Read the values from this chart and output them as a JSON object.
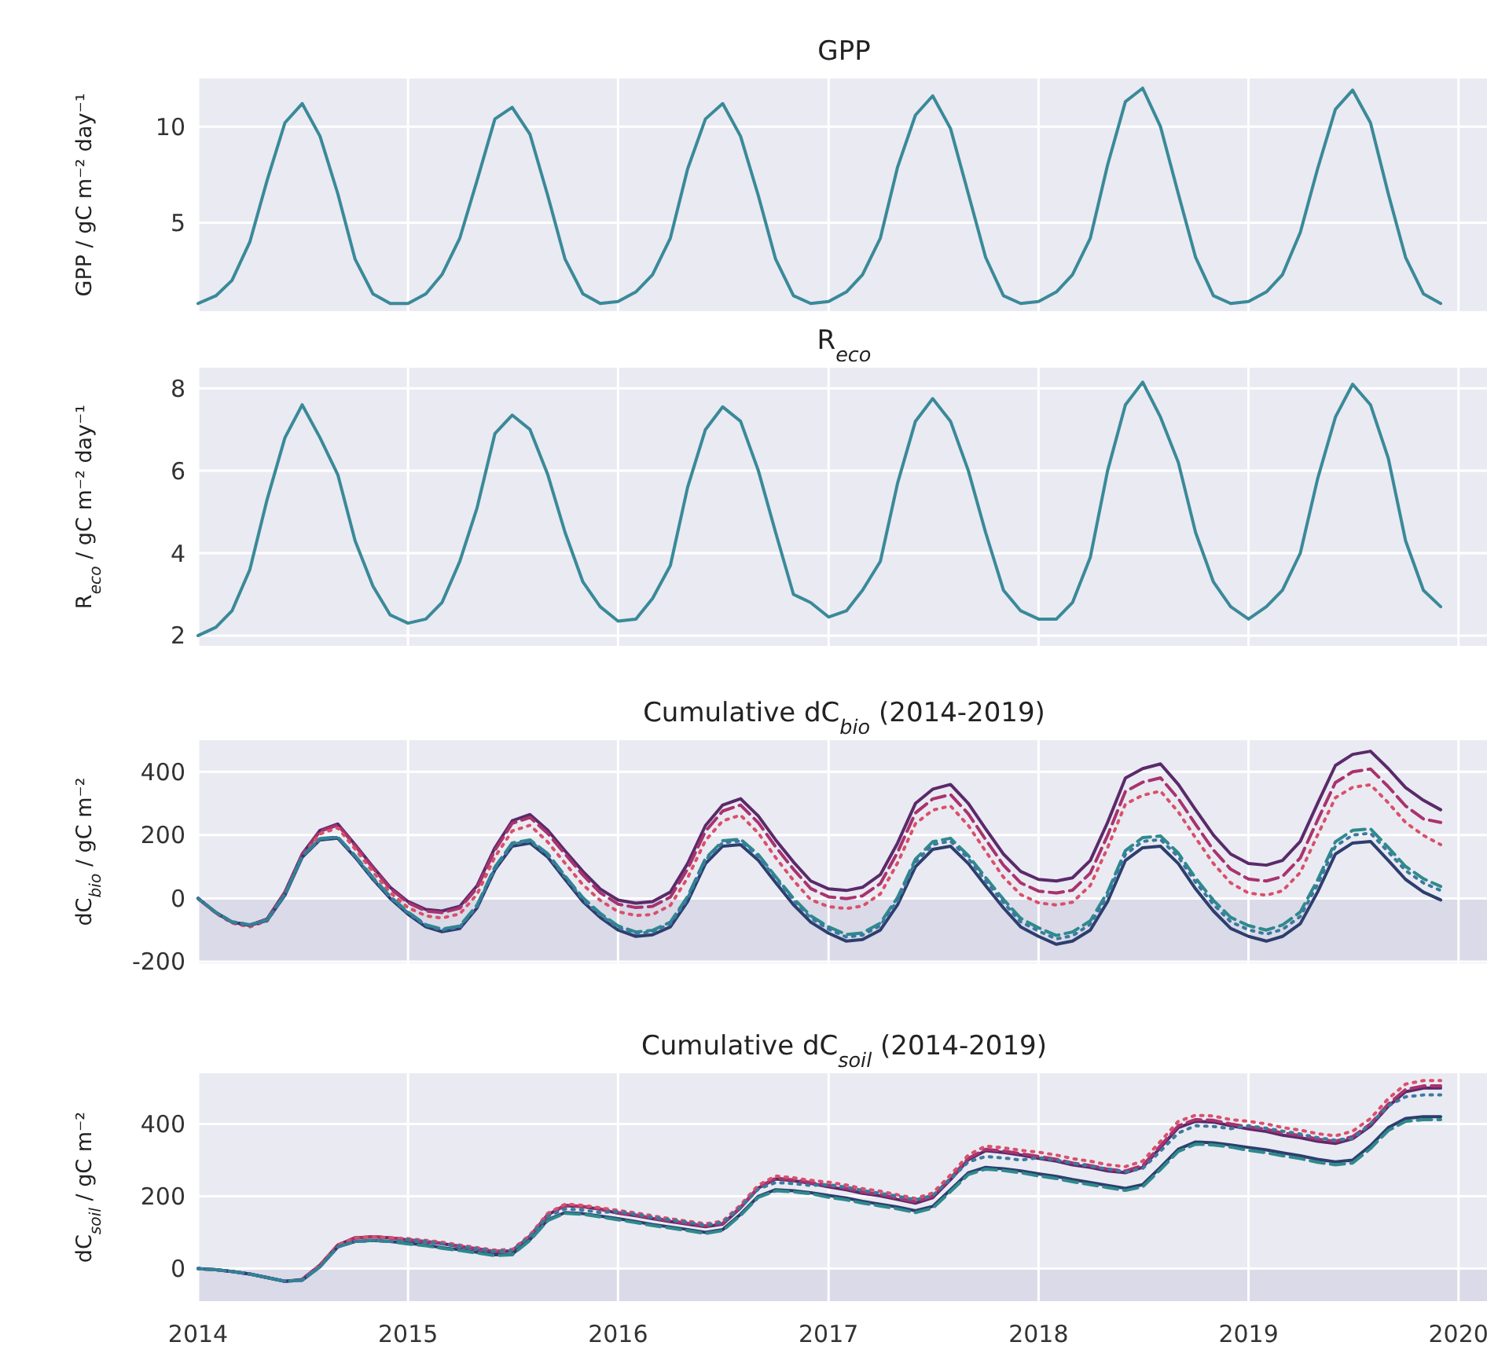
{
  "chart_data": [
    {
      "type": "line",
      "title": "GPP",
      "ylabel": "GPP / gC m⁻² day⁻¹",
      "grid": true,
      "tick_labels": "y",
      "xlim": [
        "2014-01-01",
        "2020-02-25"
      ],
      "xticks": [
        "2014",
        "2015",
        "2016",
        "2017",
        "2018",
        "2019",
        "2020"
      ],
      "ylim": [
        0.4,
        12.5
      ],
      "yticks": [
        5,
        10
      ],
      "x": [
        "2014-01",
        "2014-02",
        "2014-03",
        "2014-04",
        "2014-05",
        "2014-06",
        "2014-07",
        "2014-08",
        "2014-09",
        "2014-10",
        "2014-11",
        "2014-12",
        "2015-01",
        "2015-02",
        "2015-03",
        "2015-04",
        "2015-05",
        "2015-06",
        "2015-07",
        "2015-08",
        "2015-09",
        "2015-10",
        "2015-11",
        "2015-12",
        "2016-01",
        "2016-02",
        "2016-03",
        "2016-04",
        "2016-05",
        "2016-06",
        "2016-07",
        "2016-08",
        "2016-09",
        "2016-10",
        "2016-11",
        "2016-12",
        "2017-01",
        "2017-02",
        "2017-03",
        "2017-04",
        "2017-05",
        "2017-06",
        "2017-07",
        "2017-08",
        "2017-09",
        "2017-10",
        "2017-11",
        "2017-12",
        "2018-01",
        "2018-02",
        "2018-03",
        "2018-04",
        "2018-05",
        "2018-06",
        "2018-07",
        "2018-08",
        "2018-09",
        "2018-10",
        "2018-11",
        "2018-12",
        "2019-01",
        "2019-02",
        "2019-03",
        "2019-04",
        "2019-05",
        "2019-06",
        "2019-07",
        "2019-08",
        "2019-09",
        "2019-10",
        "2019-11",
        "2019-12"
      ],
      "series": [
        {
          "color": "#3a8a99",
          "line_style": "solid",
          "values": [
            0.8,
            1.2,
            2.0,
            4.0,
            7.2,
            10.2,
            11.2,
            9.5,
            6.5,
            3.1,
            1.3,
            0.8,
            0.8,
            1.3,
            2.3,
            4.2,
            7.2,
            10.4,
            11.0,
            9.6,
            6.4,
            3.1,
            1.3,
            0.8,
            0.9,
            1.4,
            2.3,
            4.2,
            7.8,
            10.4,
            11.2,
            9.5,
            6.4,
            3.1,
            1.2,
            0.8,
            0.9,
            1.4,
            2.3,
            4.2,
            7.9,
            10.6,
            11.6,
            9.9,
            6.5,
            3.2,
            1.2,
            0.8,
            0.9,
            1.4,
            2.3,
            4.2,
            8.0,
            11.3,
            12.0,
            10.0,
            6.5,
            3.2,
            1.2,
            0.8,
            0.9,
            1.4,
            2.3,
            4.5,
            7.8,
            10.9,
            11.9,
            10.2,
            6.5,
            3.2,
            1.3,
            0.8
          ]
        }
      ]
    },
    {
      "type": "line",
      "title": "R$_{eco}$",
      "ylabel": "R$_{eco}$ / gC m⁻² day⁻¹",
      "grid": true,
      "tick_labels": "y",
      "xlim": [
        "2014-01-01",
        "2020-02-25"
      ],
      "xticks": [
        "2014",
        "2015",
        "2016",
        "2017",
        "2018",
        "2019",
        "2020"
      ],
      "ylim": [
        1.75,
        8.5
      ],
      "yticks": [
        2,
        4,
        6,
        8
      ],
      "x": [
        "2014-01",
        "2014-02",
        "2014-03",
        "2014-04",
        "2014-05",
        "2014-06",
        "2014-07",
        "2014-08",
        "2014-09",
        "2014-10",
        "2014-11",
        "2014-12",
        "2015-01",
        "2015-02",
        "2015-03",
        "2015-04",
        "2015-05",
        "2015-06",
        "2015-07",
        "2015-08",
        "2015-09",
        "2015-10",
        "2015-11",
        "2015-12",
        "2016-01",
        "2016-02",
        "2016-03",
        "2016-04",
        "2016-05",
        "2016-06",
        "2016-07",
        "2016-08",
        "2016-09",
        "2016-10",
        "2016-11",
        "2016-12",
        "2017-01",
        "2017-02",
        "2017-03",
        "2017-04",
        "2017-05",
        "2017-06",
        "2017-07",
        "2017-08",
        "2017-09",
        "2017-10",
        "2017-11",
        "2017-12",
        "2018-01",
        "2018-02",
        "2018-03",
        "2018-04",
        "2018-05",
        "2018-06",
        "2018-07",
        "2018-08",
        "2018-09",
        "2018-10",
        "2018-11",
        "2018-12",
        "2019-01",
        "2019-02",
        "2019-03",
        "2019-04",
        "2019-05",
        "2019-06",
        "2019-07",
        "2019-08",
        "2019-09",
        "2019-10",
        "2019-11",
        "2019-12"
      ],
      "series": [
        {
          "color": "#3a8a99",
          "line_style": "solid",
          "values": [
            2.0,
            2.2,
            2.6,
            3.6,
            5.3,
            6.8,
            7.6,
            6.8,
            5.9,
            4.3,
            3.2,
            2.5,
            2.3,
            2.4,
            2.8,
            3.8,
            5.1,
            6.9,
            7.35,
            7.0,
            5.9,
            4.5,
            3.3,
            2.7,
            2.35,
            2.4,
            2.9,
            3.7,
            5.6,
            7.0,
            7.55,
            7.2,
            6.0,
            4.5,
            3.0,
            2.8,
            2.45,
            2.6,
            3.1,
            3.8,
            5.7,
            7.2,
            7.75,
            7.2,
            6.0,
            4.5,
            3.1,
            2.6,
            2.4,
            2.4,
            2.8,
            3.9,
            6.0,
            7.6,
            8.15,
            7.3,
            6.2,
            4.5,
            3.3,
            2.7,
            2.4,
            2.7,
            3.1,
            4.0,
            5.8,
            7.3,
            8.1,
            7.6,
            6.3,
            4.3,
            3.1,
            2.7
          ]
        }
      ]
    },
    {
      "type": "line",
      "title": "Cumulative dC$_{bio}$ (2014-2019)",
      "ylabel": "dC$_{bio}$ / gC m⁻²",
      "grid": true,
      "tick_labels": "y",
      "xlim": [
        "2014-01-01",
        "2020-02-25"
      ],
      "xticks": [
        "2014",
        "2015",
        "2016",
        "2017",
        "2018",
        "2019",
        "2020"
      ],
      "ylim": [
        -205,
        500
      ],
      "yticks": [
        -200,
        0,
        200,
        400
      ],
      "bands": [
        {
          "axis": "y",
          "from": -205,
          "to": 0,
          "color": "#dadae8"
        }
      ],
      "x": [
        "2014-01",
        "2014-02",
        "2014-03",
        "2014-04",
        "2014-05",
        "2014-06",
        "2014-07",
        "2014-08",
        "2014-09",
        "2014-10",
        "2014-11",
        "2014-12",
        "2015-01",
        "2015-02",
        "2015-03",
        "2015-04",
        "2015-05",
        "2015-06",
        "2015-07",
        "2015-08",
        "2015-09",
        "2015-10",
        "2015-11",
        "2015-12",
        "2016-01",
        "2016-02",
        "2016-03",
        "2016-04",
        "2016-05",
        "2016-06",
        "2016-07",
        "2016-08",
        "2016-09",
        "2016-10",
        "2016-11",
        "2016-12",
        "2017-01",
        "2017-02",
        "2017-03",
        "2017-04",
        "2017-05",
        "2017-06",
        "2017-07",
        "2017-08",
        "2017-09",
        "2017-10",
        "2017-11",
        "2017-12",
        "2018-01",
        "2018-02",
        "2018-03",
        "2018-04",
        "2018-05",
        "2018-06",
        "2018-07",
        "2018-08",
        "2018-09",
        "2018-10",
        "2018-11",
        "2018-12",
        "2019-01",
        "2019-02",
        "2019-03",
        "2019-04",
        "2019-05",
        "2019-06",
        "2019-07",
        "2019-08",
        "2019-09",
        "2019-10",
        "2019-11",
        "2019-12"
      ],
      "series": [
        {
          "color": "#5a2a6a",
          "line_style": "solid",
          "values": [
            0,
            -45,
            -75,
            -85,
            -65,
            20,
            140,
            215,
            235,
            170,
            100,
            35,
            -10,
            -35,
            -40,
            -25,
            40,
            160,
            245,
            265,
            215,
            150,
            85,
            30,
            -5,
            -15,
            -10,
            20,
            110,
            230,
            295,
            315,
            260,
            185,
            115,
            55,
            30,
            25,
            35,
            75,
            175,
            300,
            345,
            360,
            300,
            220,
            140,
            85,
            60,
            55,
            65,
            120,
            240,
            380,
            410,
            425,
            360,
            280,
            200,
            140,
            110,
            105,
            120,
            180,
            300,
            420,
            455,
            465,
            410,
            350,
            310,
            280
          ]
        },
        {
          "color": "#a8336e",
          "line_style": "dashed",
          "values": [
            0,
            -45,
            -75,
            -85,
            -66,
            19,
            138,
            212,
            232,
            166,
            96,
            31,
            -14,
            -40,
            -45,
            -31,
            33,
            152,
            237,
            256,
            205,
            140,
            74,
            18,
            -18,
            -29,
            -25,
            4,
            93,
            212,
            276,
            295,
            239,
            163,
            92,
            31,
            5,
            -1,
            8,
            47,
            146,
            270,
            314,
            328,
            267,
            186,
            105,
            49,
            23,
            17,
            26,
            80,
            199,
            338,
            367,
            381,
            315,
            234,
            153,
            92,
            61,
            55,
            69,
            128,
            247,
            366,
            400,
            409,
            353,
            292,
            251,
            240
          ]
        },
        {
          "color": "#d9506a",
          "line_style": "dotted",
          "values": [
            0,
            -47,
            -78,
            -90,
            -71,
            12,
            131,
            204,
            223,
            156,
            84,
            18,
            -29,
            -55,
            -62,
            -49,
            13,
            131,
            213,
            231,
            178,
            111,
            43,
            -6,
            -42,
            -54,
            -51,
            -22,
            65,
            183,
            245,
            263,
            206,
            129,
            57,
            -4,
            -26,
            -32,
            -24,
            14,
            112,
            236,
            279,
            292,
            230,
            149,
            67,
            12,
            -14,
            -21,
            -12,
            41,
            160,
            298,
            326,
            339,
            273,
            191,
            110,
            49,
            17,
            10,
            24,
            82,
            200,
            318,
            351,
            359,
            302,
            240,
            199,
            170
          ]
        },
        {
          "color": "#2d3e6e",
          "line_style": "solid",
          "values": [
            0,
            -45,
            -75,
            -85,
            -70,
            10,
            130,
            185,
            190,
            130,
            60,
            0,
            -50,
            -90,
            -105,
            -95,
            -30,
            90,
            165,
            175,
            130,
            60,
            -10,
            -60,
            -100,
            -120,
            -115,
            -90,
            -10,
            110,
            165,
            170,
            120,
            50,
            -20,
            -75,
            -110,
            -135,
            -130,
            -100,
            -20,
            100,
            155,
            165,
            110,
            40,
            -30,
            -90,
            -120,
            -145,
            -135,
            -100,
            -10,
            120,
            160,
            165,
            110,
            30,
            -40,
            -95,
            -120,
            -135,
            -120,
            -80,
            20,
            140,
            175,
            180,
            120,
            60,
            20,
            -5
          ]
        },
        {
          "color": "#2e8a8c",
          "line_style": "dashed",
          "values": [
            0,
            -44,
            -74,
            -83,
            -68,
            13,
            133,
            189,
            194,
            135,
            66,
            6,
            -43,
            -83,
            -97,
            -87,
            -21,
            99,
            175,
            185,
            141,
            71,
            2,
            -47,
            -87,
            -106,
            -101,
            -75,
            6,
            126,
            182,
            187,
            138,
            69,
            0,
            -55,
            -90,
            -114,
            -109,
            -78,
            3,
            124,
            179,
            190,
            135,
            66,
            -3,
            -63,
            -93,
            -117,
            -106,
            -71,
            20,
            151,
            192,
            197,
            143,
            64,
            -6,
            -60,
            -86,
            -100,
            -84,
            -43,
            58,
            179,
            215,
            220,
            161,
            101,
            62,
            38
          ]
        },
        {
          "color": "#3a7aa0",
          "line_style": "dotted",
          "values": [
            0,
            -45,
            -74,
            -84,
            -69,
            12,
            132,
            187,
            193,
            133,
            63,
            4,
            -46,
            -85,
            -100,
            -90,
            -25,
            95,
            171,
            181,
            137,
            67,
            -3,
            -52,
            -92,
            -111,
            -106,
            -80,
            0,
            121,
            176,
            181,
            132,
            63,
            -7,
            -62,
            -97,
            -122,
            -116,
            -86,
            -6,
            115,
            170,
            181,
            126,
            56,
            -13,
            -74,
            -103,
            -128,
            -118,
            -82,
            9,
            139,
            180,
            186,
            131,
            51,
            -19,
            -74,
            -99,
            -113,
            -98,
            -57,
            44,
            165,
            200,
            206,
            147,
            88,
            49,
            25
          ]
        }
      ]
    },
    {
      "type": "line",
      "title": "Cumulative dC$_{soil}$ (2014-2019)",
      "ylabel": "dC$_{soil}$ / gC m⁻²",
      "grid": true,
      "xlim": [
        "2014-01-01",
        "2020-02-25"
      ],
      "xticks": [
        "2014",
        "2015",
        "2016",
        "2017",
        "2018",
        "2019",
        "2020"
      ],
      "ylim": [
        -90,
        540
      ],
      "yticks": [
        0,
        200,
        400
      ],
      "bands": [
        {
          "axis": "y",
          "from": -90,
          "to": 0,
          "color": "#dadae8"
        }
      ],
      "x": [
        "2014-01",
        "2014-02",
        "2014-03",
        "2014-04",
        "2014-05",
        "2014-06",
        "2014-07",
        "2014-08",
        "2014-09",
        "2014-10",
        "2014-11",
        "2014-12",
        "2015-01",
        "2015-02",
        "2015-03",
        "2015-04",
        "2015-05",
        "2015-06",
        "2015-07",
        "2015-08",
        "2015-09",
        "2015-10",
        "2015-11",
        "2015-12",
        "2016-01",
        "2016-02",
        "2016-03",
        "2016-04",
        "2016-05",
        "2016-06",
        "2016-07",
        "2016-08",
        "2016-09",
        "2016-10",
        "2016-11",
        "2016-12",
        "2017-01",
        "2017-02",
        "2017-03",
        "2017-04",
        "2017-05",
        "2017-06",
        "2017-07",
        "2017-08",
        "2017-09",
        "2017-10",
        "2017-11",
        "2017-12",
        "2018-01",
        "2018-02",
        "2018-03",
        "2018-04",
        "2018-05",
        "2018-06",
        "2018-07",
        "2018-08",
        "2018-09",
        "2018-10",
        "2018-11",
        "2018-12",
        "2019-01",
        "2019-02",
        "2019-03",
        "2019-04",
        "2019-05",
        "2019-06",
        "2019-07",
        "2019-08",
        "2019-09",
        "2019-10",
        "2019-11",
        "2019-12"
      ],
      "series": [
        {
          "color": "#5a2a6a",
          "line_style": "solid",
          "values": [
            0,
            -3,
            -8,
            -15,
            -25,
            -35,
            -30,
            10,
            65,
            85,
            88,
            85,
            79,
            74,
            69,
            61,
            54,
            47,
            49,
            89,
            149,
            174,
            171,
            164,
            153,
            146,
            138,
            130,
            123,
            116,
            123,
            168,
            223,
            248,
            243,
            236,
            226,
            218,
            208,
            201,
            191,
            181,
            196,
            246,
            301,
            326,
            321,
            314,
            305,
            297,
            287,
            280,
            270,
            265,
            280,
            335,
            390,
            407,
            405,
            395,
            386,
            379,
            369,
            362,
            352,
            346,
            359,
            394,
            449,
            489,
            499,
            499
          ]
        },
        {
          "color": "#a8336e",
          "line_style": "dashed",
          "values": [
            null,
            null,
            null,
            null,
            null,
            null,
            -30,
            10,
            65,
            85,
            88,
            85,
            80,
            75,
            70,
            62,
            55,
            48,
            50,
            90,
            150,
            175,
            172,
            165,
            155,
            148,
            140,
            132,
            125,
            118,
            125,
            170,
            225,
            250,
            245,
            238,
            230,
            222,
            212,
            205,
            195,
            185,
            200,
            250,
            305,
            330,
            325,
            318,
            310,
            302,
            292,
            285,
            275,
            270,
            285,
            340,
            395,
            412,
            410,
            400,
            392,
            385,
            375,
            368,
            358,
            352,
            365,
            400,
            455,
            495,
            505,
            505
          ]
        },
        {
          "color": "#d9506a",
          "line_style": "dotted",
          "values": [
            null,
            null,
            null,
            null,
            null,
            null,
            -30,
            10,
            65,
            85,
            88,
            85,
            83,
            78,
            73,
            65,
            58,
            51,
            53,
            93,
            153,
            178,
            175,
            168,
            161,
            154,
            146,
            138,
            131,
            124,
            131,
            176,
            231,
            256,
            251,
            244,
            239,
            231,
            221,
            214,
            204,
            194,
            209,
            259,
            314,
            339,
            334,
            327,
            322,
            314,
            304,
            297,
            287,
            282,
            297,
            352,
            407,
            424,
            422,
            412,
            407,
            400,
            390,
            383,
            373,
            367,
            380,
            415,
            470,
            510,
            520,
            520
          ]
        },
        {
          "color": "#2d3e6e",
          "line_style": "solid",
          "values": [
            0,
            -3,
            -8,
            -15,
            -25,
            -35,
            -32,
            5,
            60,
            75,
            78,
            75,
            70,
            65,
            58,
            52,
            45,
            38,
            40,
            80,
            135,
            155,
            152,
            145,
            138,
            130,
            122,
            115,
            108,
            100,
            108,
            150,
            200,
            218,
            215,
            210,
            202,
            195,
            186,
            178,
            170,
            160,
            172,
            218,
            265,
            280,
            276,
            270,
            262,
            255,
            246,
            238,
            230,
            222,
            232,
            280,
            330,
            350,
            348,
            342,
            335,
            328,
            320,
            312,
            302,
            295,
            300,
            340,
            390,
            415,
            420,
            420
          ]
        },
        {
          "color": "#2e8a8c",
          "line_style": "dashed",
          "values": [
            0,
            -3,
            -8,
            -15,
            -25,
            -35,
            -32,
            5,
            60,
            75,
            78,
            75,
            68,
            63,
            56,
            50,
            43,
            36,
            38,
            78,
            133,
            153,
            150,
            143,
            135,
            127,
            119,
            112,
            105,
            97,
            105,
            147,
            197,
            215,
            212,
            207,
            197,
            190,
            181,
            173,
            165,
            155,
            167,
            213,
            260,
            275,
            271,
            265,
            256,
            249,
            240,
            232,
            224,
            216,
            226,
            274,
            324,
            344,
            342,
            336,
            327,
            320,
            312,
            304,
            294,
            287,
            292,
            332,
            382,
            407,
            412,
            412
          ]
        },
        {
          "color": "#3a7aa0",
          "line_style": "dotted",
          "values": [
            0,
            -3,
            -8,
            -15,
            -25,
            -35,
            -32,
            5,
            60,
            75,
            78,
            75,
            80,
            75,
            68,
            62,
            55,
            48,
            50,
            90,
            145,
            165,
            162,
            155,
            158,
            150,
            142,
            135,
            128,
            120,
            128,
            170,
            220,
            238,
            235,
            230,
            232,
            225,
            216,
            208,
            200,
            190,
            202,
            248,
            295,
            310,
            306,
            300,
            307,
            300,
            291,
            283,
            275,
            267,
            277,
            325,
            375,
            395,
            393,
            387,
            395,
            388,
            380,
            372,
            362,
            355,
            360,
            400,
            450,
            475,
            480,
            480
          ]
        }
      ]
    }
  ]
}
